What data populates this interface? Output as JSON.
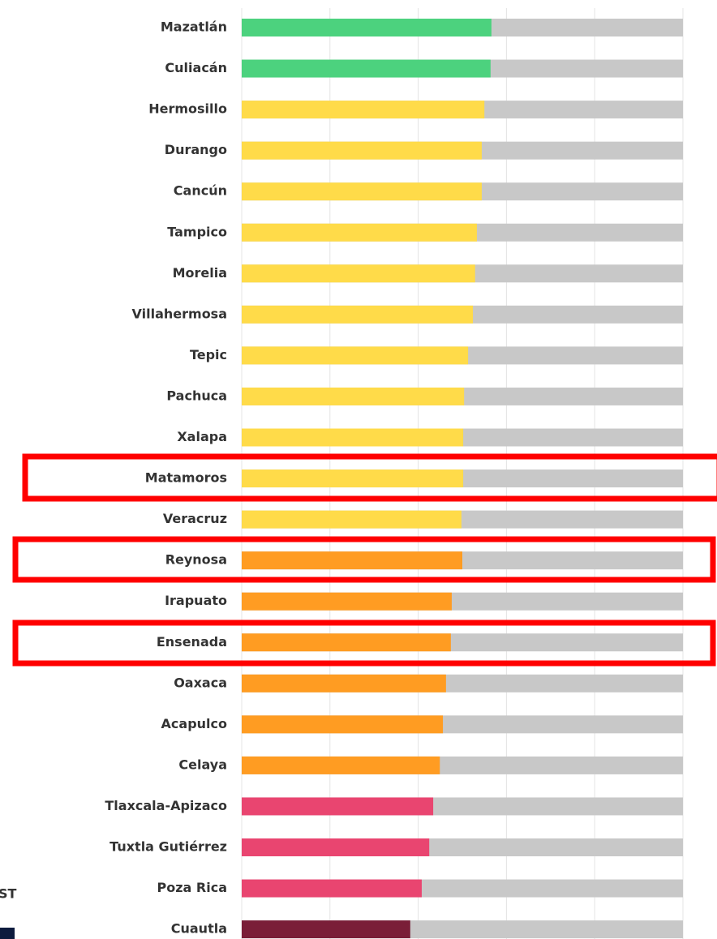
{
  "chart_data": {
    "type": "bar",
    "orientation": "horizontal",
    "categories": [
      "Mazatlán",
      "Culiacán",
      "Hermosillo",
      "Durango",
      "Cancún",
      "Tampico",
      "Morelia",
      "Villahermosa",
      "Tepic",
      "Pachuca",
      "Xalapa",
      "Matamoros",
      "Veracruz",
      "Reynosa",
      "Irapuato",
      "Ensenada",
      "Oaxaca",
      "Acapulco",
      "Celaya",
      "Tlaxcala-Apizaco",
      "Tuxtla Gutiérrez",
      "Poza Rica",
      "Cuautla"
    ],
    "values": [
      56.6,
      56.4,
      55.0,
      54.4,
      54.4,
      53.3,
      52.9,
      52.4,
      51.3,
      50.4,
      50.2,
      50.2,
      49.8,
      50.0,
      47.6,
      47.4,
      46.3,
      45.6,
      44.9,
      43.4,
      42.5,
      40.8,
      38.2
    ],
    "colors": [
      "#4cd27e",
      "#4cd27e",
      "#ffdb49",
      "#ffdb49",
      "#ffdb49",
      "#ffdb49",
      "#ffdb49",
      "#ffdb49",
      "#ffdb49",
      "#ffdb49",
      "#ffdb49",
      "#ffdb49",
      "#ffdb49",
      "#ff9c22",
      "#ff9c22",
      "#ff9c22",
      "#ff9c22",
      "#ff9c22",
      "#ff9c22",
      "#e94570",
      "#e94570",
      "#e94570",
      "#7a1e38"
    ],
    "xlim": [
      0,
      100
    ],
    "xticks": [
      0,
      20,
      40,
      60,
      80,
      100
    ],
    "grid": true
  },
  "fragment": "ST"
}
